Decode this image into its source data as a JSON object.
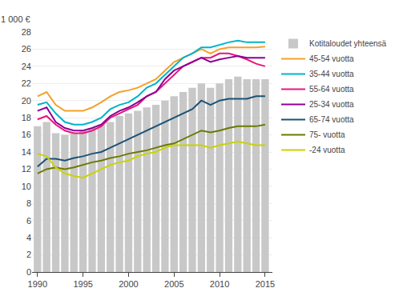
{
  "chart_data": {
    "type": "bar",
    "ylabel": "1 000 €",
    "x": [
      1990,
      1991,
      1992,
      1993,
      1994,
      1995,
      1996,
      1997,
      1998,
      1999,
      2000,
      2001,
      2002,
      2003,
      2004,
      2005,
      2006,
      2007,
      2008,
      2009,
      2010,
      2011,
      2012,
      2013,
      2014,
      2015
    ],
    "xlim": [
      1989.4,
      2015.8
    ],
    "xticks": [
      1990,
      1995,
      2000,
      2005,
      2010,
      2015
    ],
    "ylim": [
      0,
      28
    ],
    "yticks": [
      0,
      2,
      4,
      6,
      8,
      10,
      12,
      14,
      16,
      18,
      20,
      22,
      24,
      26,
      28
    ],
    "grid": true,
    "legend": "right",
    "series": [
      {
        "name": "Kotitaloudet yhteensä",
        "type": "bar",
        "color": "#C8C8C8",
        "values": [
          17.0,
          17.5,
          16.2,
          16.0,
          16.2,
          16.6,
          16.8,
          17.2,
          17.5,
          18.2,
          18.5,
          18.8,
          19.2,
          19.5,
          20.0,
          20.5,
          21.0,
          21.5,
          22.0,
          21.5,
          22.0,
          22.5,
          22.8,
          22.5,
          22.5,
          22.5
        ]
      },
      {
        "name": "45-54 vuotta",
        "type": "line",
        "color": "#F5A028",
        "values": [
          20.5,
          21.0,
          19.5,
          18.8,
          18.8,
          18.8,
          19.2,
          19.8,
          20.5,
          21.0,
          21.2,
          21.5,
          22.0,
          22.5,
          23.5,
          24.5,
          25.0,
          25.5,
          26.0,
          25.5,
          26.0,
          26.2,
          26.2,
          26.2,
          26.2,
          26.3
        ]
      },
      {
        "name": "35-44 vuotta",
        "type": "line",
        "color": "#00B4C8",
        "values": [
          19.5,
          19.8,
          18.5,
          17.5,
          17.2,
          17.2,
          17.5,
          18.0,
          19.0,
          19.5,
          19.8,
          20.5,
          21.5,
          22.0,
          23.0,
          24.0,
          25.0,
          25.5,
          26.2,
          26.2,
          26.5,
          26.8,
          27.0,
          26.8,
          26.8,
          26.8
        ]
      },
      {
        "name": "55-64 vuotta",
        "type": "line",
        "color": "#E8167A",
        "values": [
          17.8,
          18.2,
          17.2,
          16.5,
          16.2,
          16.2,
          16.5,
          17.0,
          18.0,
          18.5,
          19.0,
          19.5,
          20.5,
          21.0,
          22.0,
          23.0,
          24.0,
          24.5,
          25.0,
          25.0,
          25.5,
          25.5,
          25.2,
          24.8,
          24.3,
          24.0
        ]
      },
      {
        "name": "25-34 vuotta",
        "type": "line",
        "color": "#8B0097",
        "values": [
          18.8,
          19.2,
          17.5,
          16.8,
          16.5,
          16.5,
          16.8,
          17.2,
          18.2,
          18.8,
          19.2,
          19.8,
          20.5,
          21.0,
          22.5,
          23.5,
          24.0,
          24.5,
          25.0,
          24.5,
          24.8,
          25.0,
          25.2,
          25.0,
          25.0,
          25.0
        ]
      },
      {
        "name": "65-74 vuotta",
        "type": "line",
        "color": "#1A5276",
        "values": [
          12.3,
          13.2,
          13.2,
          13.0,
          13.3,
          13.5,
          13.8,
          14.0,
          14.5,
          15.0,
          15.5,
          16.0,
          16.5,
          17.0,
          17.5,
          18.0,
          18.5,
          19.0,
          20.0,
          19.5,
          20.0,
          20.2,
          20.2,
          20.2,
          20.5,
          20.5
        ]
      },
      {
        "name": "75- vuotta",
        "type": "line",
        "color": "#6B7A00",
        "values": [
          11.5,
          12.0,
          12.2,
          12.0,
          12.2,
          12.5,
          12.8,
          13.0,
          13.3,
          13.5,
          13.8,
          14.0,
          14.2,
          14.5,
          14.8,
          15.0,
          15.5,
          16.0,
          16.5,
          16.3,
          16.5,
          16.8,
          17.0,
          17.0,
          17.0,
          17.2
        ]
      },
      {
        "name": "-24 vuotta",
        "type": "line",
        "color": "#C8D400",
        "values": [
          13.8,
          13.5,
          12.2,
          11.5,
          11.2,
          11.0,
          11.5,
          12.0,
          12.5,
          12.8,
          13.0,
          13.5,
          13.8,
          14.0,
          14.5,
          14.8,
          14.8,
          14.8,
          14.8,
          14.5,
          14.8,
          15.0,
          15.2,
          15.0,
          14.8,
          14.8
        ]
      }
    ]
  }
}
